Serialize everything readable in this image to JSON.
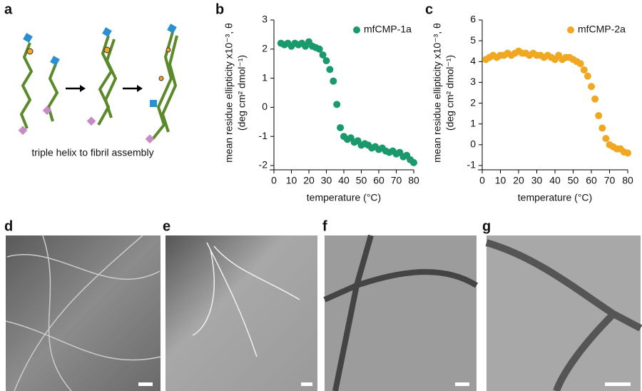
{
  "panels": [
    "a",
    "b",
    "c",
    "d",
    "e",
    "f",
    "g"
  ],
  "schematic_caption": "triple helix to fibril assembly",
  "chart_data": [
    {
      "type": "scatter",
      "xlabel": "temperature (°C)",
      "ylabel": [
        "mean residue ellipticity x10⁻³, θ",
        "(deg cm² dmol⁻¹)"
      ],
      "xlim": [
        0,
        80
      ],
      "xticks": [
        0,
        10,
        20,
        30,
        40,
        50,
        60,
        70,
        80
      ],
      "ylim": [
        -2,
        3
      ],
      "yticks": [
        -2,
        -1,
        0,
        1,
        2,
        3
      ],
      "legend": "top-right",
      "x": [
        4,
        6,
        8,
        10,
        12,
        14,
        16,
        18,
        20,
        22,
        24,
        26,
        28,
        30,
        32,
        34,
        36,
        38,
        40,
        42,
        44,
        46,
        48,
        50,
        52,
        54,
        56,
        58,
        60,
        62,
        64,
        66,
        68,
        70,
        72,
        74,
        76,
        78,
        80
      ],
      "series": [
        {
          "name": "mfCMP-1a",
          "color": "#1a9a6c",
          "values": [
            2.2,
            2.15,
            2.2,
            2.1,
            2.2,
            2.15,
            2.2,
            2.1,
            2.25,
            2.1,
            2.05,
            2.0,
            1.8,
            1.6,
            1.3,
            0.9,
            0.1,
            -0.7,
            -1.0,
            -1.1,
            -1.05,
            -1.2,
            -1.15,
            -1.3,
            -1.25,
            -1.3,
            -1.4,
            -1.35,
            -1.45,
            -1.4,
            -1.5,
            -1.55,
            -1.5,
            -1.6,
            -1.55,
            -1.7,
            -1.65,
            -1.8,
            -1.9
          ]
        }
      ]
    },
    {
      "type": "scatter",
      "xlabel": "temperature (°C)",
      "ylabel": [
        "mean residue ellipticity x10⁻³, θ",
        "(deg cm² dmol⁻¹)"
      ],
      "xlim": [
        0,
        80
      ],
      "xticks": [
        0,
        10,
        20,
        30,
        40,
        50,
        60,
        70,
        80
      ],
      "ylim": [
        -1,
        6
      ],
      "yticks": [
        -1,
        0,
        1,
        2,
        3,
        4,
        5,
        6
      ],
      "legend": "top-right",
      "x": [
        2,
        4,
        6,
        8,
        10,
        12,
        14,
        16,
        18,
        20,
        22,
        24,
        26,
        28,
        30,
        32,
        34,
        36,
        38,
        40,
        42,
        44,
        46,
        48,
        50,
        52,
        54,
        56,
        58,
        60,
        62,
        64,
        66,
        68,
        70,
        72,
        74,
        76,
        78,
        80
      ],
      "series": [
        {
          "name": "mfCMP-2a",
          "color": "#f0a722",
          "values": [
            4.1,
            4.2,
            4.3,
            4.2,
            4.3,
            4.3,
            4.4,
            4.3,
            4.4,
            4.5,
            4.4,
            4.4,
            4.3,
            4.4,
            4.3,
            4.3,
            4.2,
            4.3,
            4.2,
            4.1,
            4.3,
            4.1,
            4.2,
            4.2,
            4.1,
            4.0,
            3.9,
            3.6,
            3.3,
            2.8,
            2.2,
            1.4,
            0.8,
            0.3,
            0.0,
            -0.1,
            -0.2,
            -0.2,
            -0.35,
            -0.4
          ]
        }
      ]
    }
  ]
}
